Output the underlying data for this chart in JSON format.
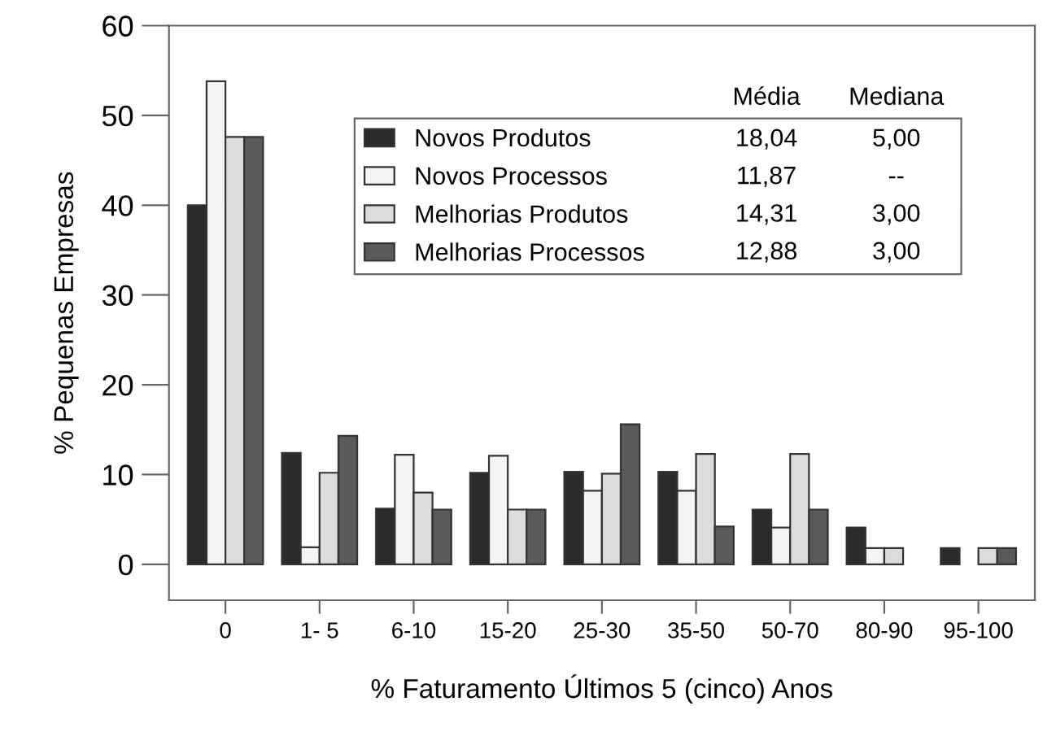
{
  "chart_data": {
    "type": "bar",
    "xlabel": "% Faturamento Últimos 5 (cinco) Anos",
    "ylabel": "% Pequenas Empresas",
    "categories": [
      "0",
      "1- 5",
      "6-10",
      "15-20",
      "25-30",
      "35-50",
      "50-70",
      "80-90",
      "95-100"
    ],
    "series": [
      {
        "name": "Novos Produtos",
        "color": "#2b2b2b",
        "values": [
          40,
          12.4,
          6.2,
          10.2,
          10.3,
          10.3,
          6.1,
          4.1,
          1.8
        ]
      },
      {
        "name": "Novos Processos",
        "color": "#f4f4f4",
        "values": [
          53.8,
          1.9,
          12.2,
          12.1,
          8.2,
          8.2,
          4.1,
          1.8,
          null
        ]
      },
      {
        "name": "Melhorias Produtos",
        "color": "#dcdcdc",
        "values": [
          47.6,
          10.2,
          8,
          6.1,
          10.1,
          12.3,
          12.3,
          1.8,
          1.8
        ]
      },
      {
        "name": "Melhorias Processos",
        "color": "#5a5a5a",
        "values": [
          47.6,
          14.3,
          6.1,
          6.1,
          15.6,
          4.2,
          6.1,
          null,
          1.8
        ]
      }
    ],
    "annotations": [
      "Média",
      "Mediana",
      "18,04",
      "5,00",
      "11,87",
      "--",
      "14,31",
      "3,00",
      "12,88",
      "3,00"
    ],
    "ylim": [
      -4,
      60
    ],
    "yticks": [
      0,
      10,
      20,
      30,
      40,
      50,
      60
    ],
    "grid": false,
    "legend": "top"
  }
}
